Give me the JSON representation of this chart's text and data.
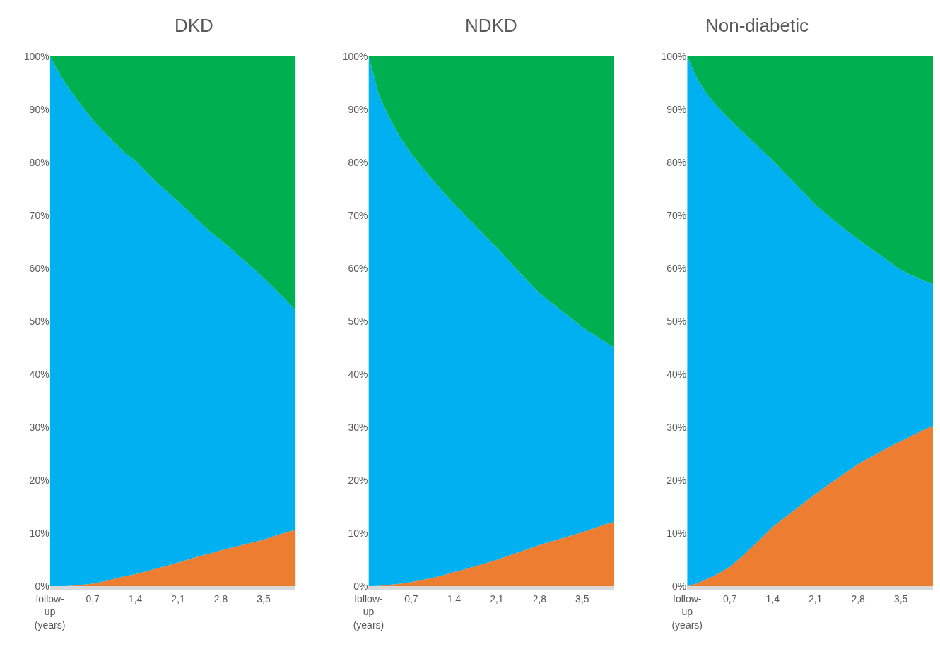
{
  "chart_data": [
    {
      "type": "area",
      "stacked": true,
      "title": "DKD",
      "ylim": [
        0,
        100
      ],
      "yticks": [
        {
          "value": 0,
          "label": "0%"
        },
        {
          "value": 10,
          "label": "10%"
        },
        {
          "value": 20,
          "label": "20%"
        },
        {
          "value": 30,
          "label": "30%"
        },
        {
          "value": 40,
          "label": "40%"
        },
        {
          "value": 50,
          "label": "50%"
        },
        {
          "value": 60,
          "label": "60%"
        },
        {
          "value": 70,
          "label": "70%"
        },
        {
          "value": 80,
          "label": "80%"
        },
        {
          "value": 90,
          "label": "90%"
        },
        {
          "value": 100,
          "label": "100%"
        }
      ],
      "categories": [
        "follow-up (years)",
        null,
        null,
        null,
        "0,7",
        null,
        null,
        null,
        "1,4",
        null,
        null,
        null,
        "2,1",
        null,
        null,
        null,
        "2,8",
        null,
        null,
        null,
        "3,5",
        null,
        null,
        null
      ],
      "series": [
        {
          "color": "#ed7d31",
          "values": [
            0,
            0,
            0.1,
            0.3,
            0.5,
            0.9,
            1.4,
            1.9,
            2.3,
            2.8,
            3.4,
            3.9,
            4.5,
            5.1,
            5.7,
            6.2,
            6.8,
            7.3,
            7.8,
            8.3,
            8.8,
            9.5,
            10.1,
            10.7
          ]
        },
        {
          "color": "#00b0f0",
          "values": [
            100,
            96.3,
            93.2,
            90.3,
            87.5,
            85.0,
            82.4,
            79.9,
            78.0,
            75.4,
            72.8,
            70.5,
            68.1,
            65.6,
            63.1,
            60.7,
            58.5,
            56.3,
            54.0,
            51.7,
            49.4,
            46.7,
            44.1,
            41.3
          ]
        },
        {
          "color": "#00b050",
          "values": [
            0,
            3.7,
            6.7,
            9.4,
            12,
            14.1,
            16.2,
            18.2,
            19.7,
            21.8,
            23.8,
            25.6,
            27.4,
            29.3,
            31.2,
            33.1,
            34.7,
            36.4,
            38.2,
            40.0,
            41.8,
            43.8,
            45.8,
            48.0
          ]
        }
      ]
    },
    {
      "type": "area",
      "stacked": true,
      "title": "NDKD",
      "ylim": [
        0,
        100
      ],
      "yticks": [
        {
          "value": 0,
          "label": "0%"
        },
        {
          "value": 10,
          "label": "10%"
        },
        {
          "value": 20,
          "label": "20%"
        },
        {
          "value": 30,
          "label": "30%"
        },
        {
          "value": 40,
          "label": "40%"
        },
        {
          "value": 50,
          "label": "50%"
        },
        {
          "value": 60,
          "label": "60%"
        },
        {
          "value": 70,
          "label": "70%"
        },
        {
          "value": 80,
          "label": "80%"
        },
        {
          "value": 90,
          "label": "90%"
        },
        {
          "value": 100,
          "label": "100%"
        }
      ],
      "categories": [
        "follow-up (years)",
        null,
        null,
        null,
        "0,7",
        null,
        null,
        null,
        "1,4",
        null,
        null,
        null,
        "2,1",
        null,
        null,
        null,
        "2,8",
        null,
        null,
        null,
        "3,5",
        null,
        null,
        null
      ],
      "series": [
        {
          "color": "#ed7d31",
          "values": [
            0,
            0.1,
            0.3,
            0.5,
            0.8,
            1.2,
            1.6,
            2.1,
            2.7,
            3.2,
            3.8,
            4.4,
            5.0,
            5.7,
            6.4,
            7.1,
            7.8,
            8.4,
            9.0,
            9.6,
            10.2,
            10.9,
            11.6,
            12.2
          ]
        },
        {
          "color": "#00b0f0",
          "values": [
            100,
            92.4,
            87.9,
            84.1,
            80.8,
            77.9,
            75.1,
            72.3,
            69.5,
            66.9,
            64.2,
            61.5,
            58.9,
            56.0,
            53.1,
            50.3,
            47.5,
            45.3,
            43.1,
            40.9,
            38.7,
            36.7,
            34.7,
            32.8
          ]
        },
        {
          "color": "#00b050",
          "values": [
            0,
            7.5,
            11.8,
            15.4,
            18.4,
            20.9,
            23.3,
            25.6,
            27.8,
            29.9,
            32.0,
            34.1,
            36.1,
            38.3,
            40.5,
            42.6,
            44.7,
            46.3,
            47.9,
            49.5,
            51.1,
            52.4,
            53.7,
            55.0
          ]
        }
      ]
    },
    {
      "type": "area",
      "stacked": true,
      "title": "Non-diabetic",
      "ylim": [
        0,
        100
      ],
      "yticks": [
        {
          "value": 0,
          "label": "0%"
        },
        {
          "value": 10,
          "label": "10%"
        },
        {
          "value": 20,
          "label": "20%"
        },
        {
          "value": 30,
          "label": "30%"
        },
        {
          "value": 40,
          "label": "40%"
        },
        {
          "value": 50,
          "label": "50%"
        },
        {
          "value": 60,
          "label": "60%"
        },
        {
          "value": 70,
          "label": "70%"
        },
        {
          "value": 80,
          "label": "80%"
        },
        {
          "value": 90,
          "label": "90%"
        },
        {
          "value": 100,
          "label": "100%"
        }
      ],
      "categories": [
        "follow-up (years)",
        null,
        null,
        null,
        "0,7",
        null,
        null,
        null,
        "1,4",
        null,
        null,
        null,
        "2,1",
        null,
        null,
        null,
        "2,8",
        null,
        null,
        null,
        "3,5",
        null,
        null,
        null
      ],
      "series": [
        {
          "color": "#ed7d31",
          "values": [
            0,
            0.6,
            1.5,
            2.5,
            3.7,
            5.4,
            7.3,
            9.2,
            11.2,
            12.8,
            14.3,
            15.9,
            17.4,
            18.9,
            20.3,
            21.7,
            23.1,
            24.2,
            25.3,
            26.4,
            27.4,
            28.4,
            29.4,
            30.3
          ]
        },
        {
          "color": "#00b0f0",
          "values": [
            100,
            94.9,
            91.0,
            87.6,
            84.4,
            80.7,
            76.9,
            73.1,
            69.2,
            65.5,
            61.9,
            58.2,
            54.6,
            51.4,
            48.3,
            45.3,
            42.4,
            39.8,
            37.3,
            34.7,
            32.3,
            30.3,
            28.4,
            26.7
          ]
        },
        {
          "color": "#00b050",
          "values": [
            0,
            4.5,
            7.5,
            9.9,
            11.9,
            13.9,
            15.8,
            17.7,
            19.6,
            21.7,
            23.8,
            25.9,
            28.0,
            29.7,
            31.4,
            33.0,
            34.5,
            36.0,
            37.4,
            38.9,
            40.3,
            41.3,
            42.2,
            43.0
          ]
        }
      ]
    }
  ]
}
